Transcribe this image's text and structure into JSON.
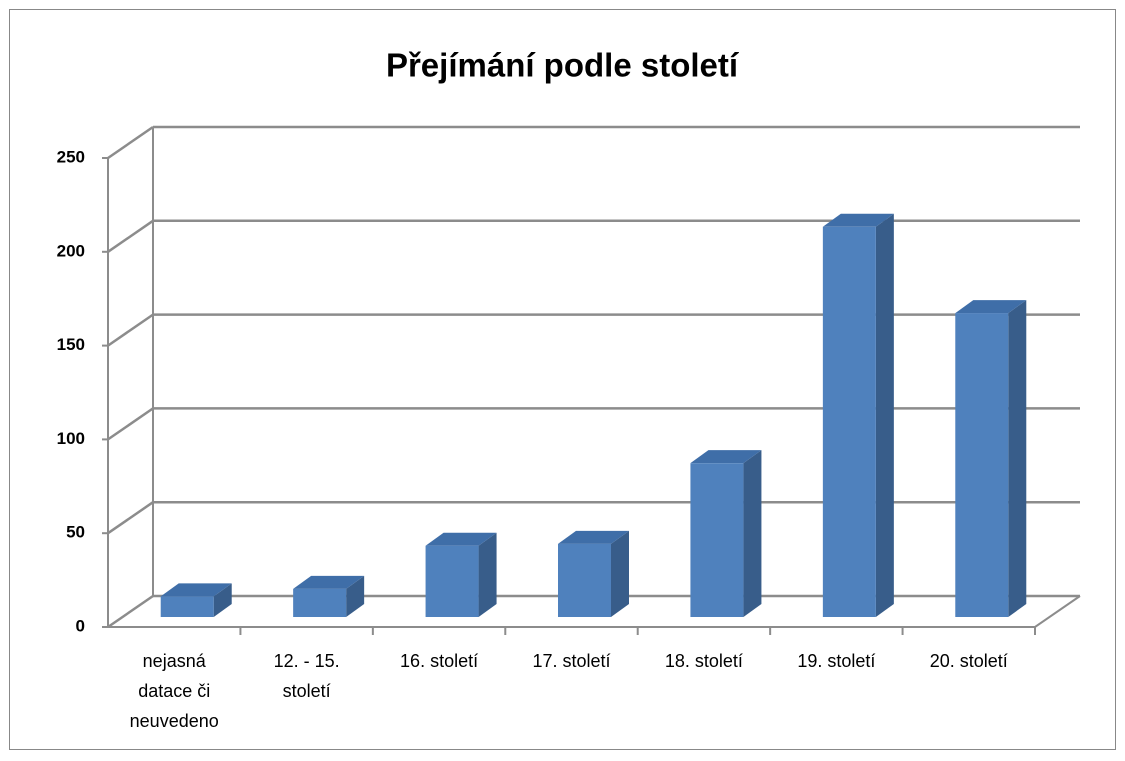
{
  "chart_data": {
    "type": "bar3d",
    "title": "Přejímání podle století",
    "categories": [
      "nejasná datace či neuvedeno",
      "12. - 15. století",
      "16. století",
      "17. století",
      "18. století",
      "19. století",
      "20. století"
    ],
    "values": [
      11,
      15,
      38,
      39,
      82,
      208,
      162
    ],
    "color": "#4f81bd",
    "ylim": [
      0,
      250
    ],
    "yticks": [
      0,
      50,
      100,
      150,
      200,
      250
    ],
    "grid": true
  }
}
